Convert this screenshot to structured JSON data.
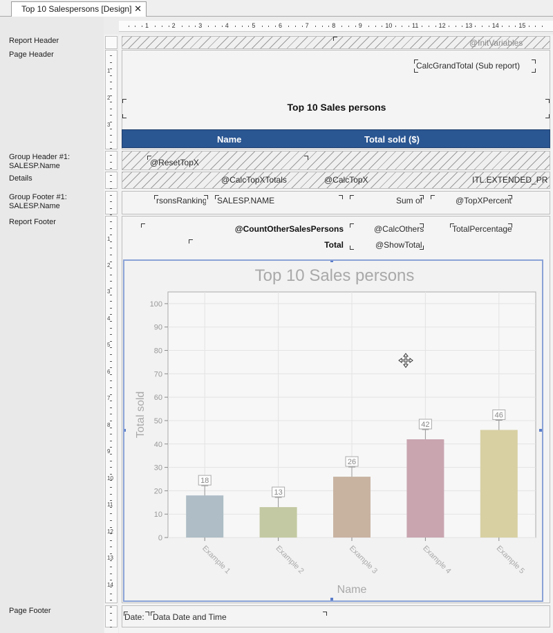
{
  "tab": {
    "title": "Top 10 Salespersons [Design]",
    "close": "✕"
  },
  "ruler": {
    "h_numbers": [
      "1",
      "2",
      "3",
      "4",
      "5",
      "6",
      "7",
      "8",
      "9",
      "10",
      "11",
      "12",
      "13",
      "14",
      "15"
    ],
    "v_numbers": [
      "1",
      "2",
      "3",
      "1",
      "2",
      "3",
      "4",
      "5",
      "6",
      "7",
      "8",
      "9",
      "10",
      "11",
      "12",
      "13",
      "14"
    ]
  },
  "sections": {
    "report_header": "Report Header",
    "page_header": "Page Header",
    "group_header": "Group Header #1:\nSALESP.Name",
    "details": "Details",
    "group_footer": "Group Footer #1:\nSALESP.Name",
    "report_footer": "Report Footer",
    "page_footer": "Page Footer"
  },
  "fields": {
    "init_variables": "@InitVariables",
    "calc_grand_total": "CalcGrandTotal (Sub report)",
    "report_title": "Top 10 Sales persons",
    "col_name": "Name",
    "col_total_sold": "Total sold ($)",
    "reset_topx": "@ResetTopX",
    "calc_topx_totals": "@CalcTopXTotals",
    "calc_topx": "@CalcTopX",
    "extended_price": "ITL.EXTENDED_PRICE",
    "persons_ranking": "rsonsRanking",
    "salesp_name": "SALESP.NAME",
    "sum_of": "Sum of",
    "topx_percent": "@TopXPercent",
    "count_other": "@CountOtherSalesPersons",
    "calc_others": "@CalcOthers",
    "total_percentage": "TotalPercentage",
    "total_label": "Total",
    "show_total": "@ShowTotal",
    "date_label": "Date:",
    "data_date_time": "Data Date and Time"
  },
  "colors": {
    "header_bar": "#2a5692",
    "bars": [
      "#aebdc6",
      "#c3c9a2",
      "#c8b3a1",
      "#c9a5b0",
      "#d8d0a2"
    ]
  },
  "chart_data": {
    "type": "bar",
    "title": "Top 10 Sales persons",
    "xlabel": "Name",
    "ylabel": "Total sold",
    "categories": [
      "Example 1",
      "Example 2",
      "Example 3",
      "Example 4",
      "Example 5"
    ],
    "values": [
      18,
      13,
      26,
      42,
      46
    ],
    "data_labels": [
      "18",
      "13",
      "26",
      "42",
      "46"
    ],
    "ylim": [
      0,
      105
    ],
    "yticks": [
      "0",
      "10",
      "20",
      "30",
      "40",
      "50",
      "60",
      "70",
      "80",
      "90",
      "100"
    ],
    "grid": true,
    "error_bars": true,
    "legend": "none"
  },
  "icons": {
    "move": "move-cursor-icon",
    "close": "close-icon"
  }
}
